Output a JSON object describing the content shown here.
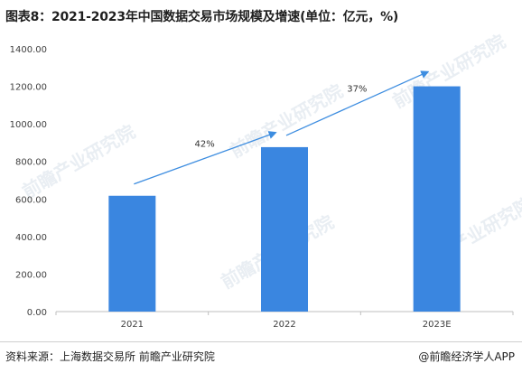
{
  "title": "图表8：2021-2023年中国数据交易市场规模及增速(单位：亿元，%)",
  "source": "资料来源：上海数据交易所 前瞻产业研究院",
  "credit": "@前瞻经济学人APP",
  "watermark": "前瞻产业研究院",
  "colors": {
    "bar": "#3a86e0",
    "arrow": "#3d8de0",
    "axis": "#bfbfbf",
    "tick_text": "#404040"
  },
  "chart_data": {
    "type": "bar",
    "categories": [
      "2021",
      "2022",
      "2023E"
    ],
    "values": [
      617,
      876,
      1200
    ],
    "ylim": [
      0,
      1400
    ],
    "yticks": [
      "0.00",
      "200.00",
      "400.00",
      "600.00",
      "800.00",
      "1000.00",
      "1200.00",
      "1400.00"
    ],
    "grid": false,
    "growth_annotations": [
      "42%",
      "37%"
    ]
  }
}
